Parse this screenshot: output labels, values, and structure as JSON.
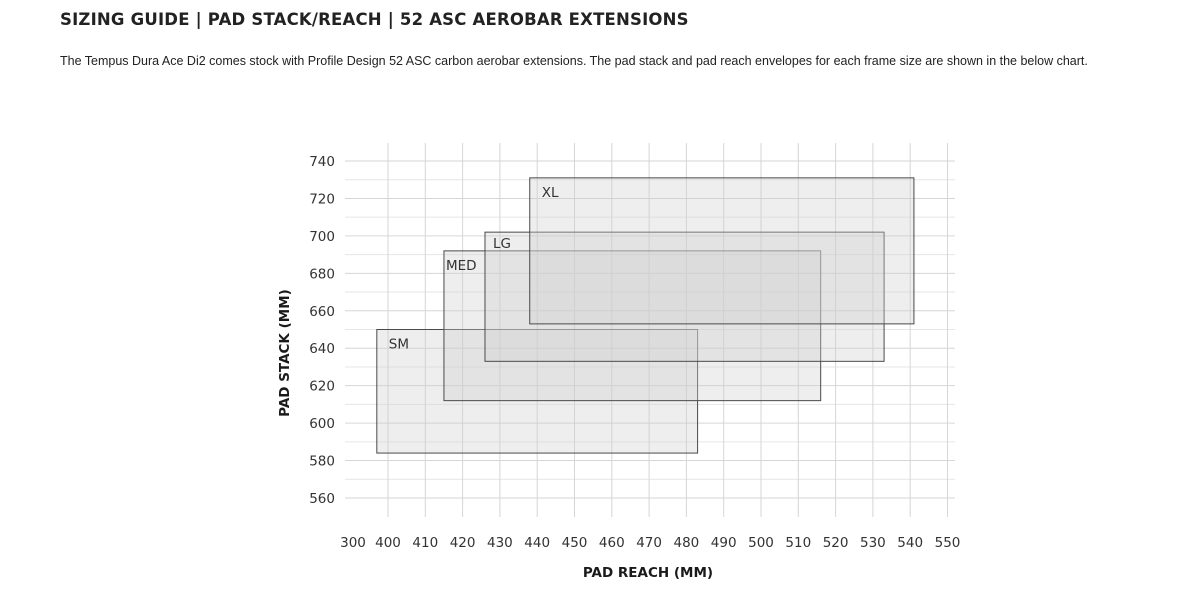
{
  "header": {
    "title": "SIZING GUIDE | PAD STACK/REACH | 52 ASC AEROBAR EXTENSIONS",
    "description": "The Tempus Dura Ace Di2 comes stock with Profile Design 52 ASC carbon aerobar extensions. The pad stack and pad reach envelopes for each frame size are shown in the below chart."
  },
  "chart_data": {
    "type": "area",
    "title": "",
    "xlabel": "PAD REACH (MM)",
    "ylabel": "PAD STACK (MM)",
    "x_ticks": [
      300,
      400,
      410,
      420,
      430,
      440,
      450,
      460,
      470,
      480,
      490,
      500,
      510,
      520,
      530,
      540,
      550
    ],
    "y_ticks": [
      560,
      580,
      600,
      620,
      640,
      660,
      680,
      700,
      720,
      740
    ],
    "ylim": [
      560,
      740
    ],
    "grid": true,
    "colors": {
      "fill": "#cfcfcf",
      "stroke": "#4a4a4a",
      "grid": "#d6d6d6"
    },
    "series": [
      {
        "name": "SM",
        "x_range": [
          397,
          483
        ],
        "y_range": [
          584,
          650
        ]
      },
      {
        "name": "MED",
        "x_range": [
          415,
          516
        ],
        "y_range": [
          612,
          692
        ]
      },
      {
        "name": "LG",
        "x_range": [
          426,
          533
        ],
        "y_range": [
          633,
          702
        ]
      },
      {
        "name": "XL",
        "x_range": [
          438,
          541
        ],
        "y_range": [
          653,
          731
        ]
      }
    ]
  }
}
